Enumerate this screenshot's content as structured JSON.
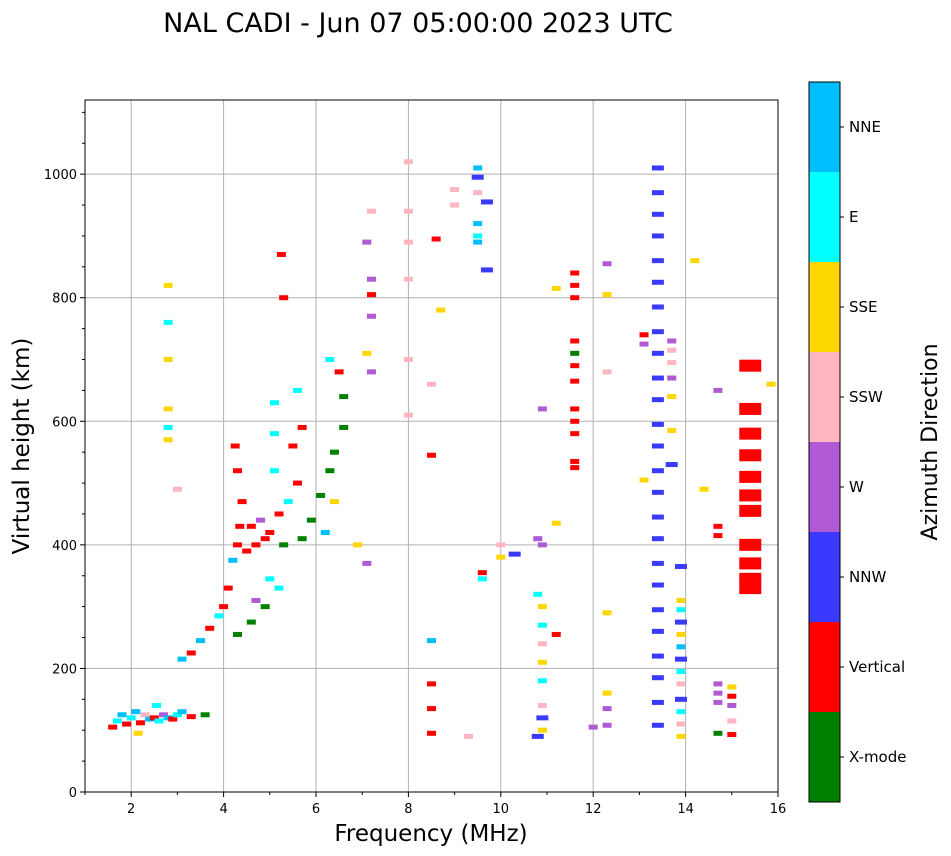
{
  "chart_data": {
    "type": "scatter",
    "title": "NAL CADI - Jun 07 05:00:00 2023 UTC",
    "xlabel": "Frequency (MHz)",
    "ylabel": "Virtual height (km)",
    "xlim": [
      1,
      16
    ],
    "ylim": [
      0,
      1120
    ],
    "xticks": [
      2,
      4,
      6,
      8,
      10,
      12,
      14,
      16
    ],
    "yticks": [
      0,
      200,
      400,
      600,
      800,
      1000
    ],
    "grid": true,
    "colorbar": {
      "title": "Azimuth Direction",
      "position": "right",
      "categories": [
        {
          "name": "X-mode",
          "color": "#008000"
        },
        {
          "name": "Vertical",
          "color": "#ff0000"
        },
        {
          "name": "NNW",
          "color": "#3a3aff"
        },
        {
          "name": "W",
          "color": "#b05ad6"
        },
        {
          "name": "SSW",
          "color": "#ffb6c1"
        },
        {
          "name": "SSE",
          "color": "#ffd700"
        },
        {
          "name": "E",
          "color": "#00ffff"
        },
        {
          "name": "NNE",
          "color": "#00bfff"
        }
      ]
    },
    "echoes": [
      {
        "x": 1.6,
        "y": 105,
        "c": 1
      },
      {
        "x": 1.7,
        "y": 115,
        "c": 6
      },
      {
        "x": 1.8,
        "y": 125,
        "c": 7
      },
      {
        "x": 1.9,
        "y": 110,
        "c": 1
      },
      {
        "x": 2.0,
        "y": 120,
        "c": 6
      },
      {
        "x": 2.1,
        "y": 130,
        "c": 7
      },
      {
        "x": 2.2,
        "y": 112,
        "c": 1
      },
      {
        "x": 2.3,
        "y": 125,
        "c": 4
      },
      {
        "x": 2.4,
        "y": 118,
        "c": 7
      },
      {
        "x": 2.5,
        "y": 120,
        "c": 1
      },
      {
        "x": 2.6,
        "y": 115,
        "c": 6
      },
      {
        "x": 2.7,
        "y": 125,
        "c": 3
      },
      {
        "x": 2.8,
        "y": 120,
        "c": 7
      },
      {
        "x": 2.9,
        "y": 118,
        "c": 1
      },
      {
        "x": 3.0,
        "y": 125,
        "c": 6
      },
      {
        "x": 3.1,
        "y": 130,
        "c": 7
      },
      {
        "x": 3.3,
        "y": 122,
        "c": 1
      },
      {
        "x": 3.6,
        "y": 125,
        "c": 0
      },
      {
        "x": 2.15,
        "y": 95,
        "c": 5
      },
      {
        "x": 2.55,
        "y": 140,
        "c": 6
      },
      {
        "x": 2.8,
        "y": 820,
        "c": 5
      },
      {
        "x": 2.8,
        "y": 760,
        "c": 6
      },
      {
        "x": 2.8,
        "y": 700,
        "c": 5
      },
      {
        "x": 2.8,
        "y": 620,
        "c": 5
      },
      {
        "x": 2.8,
        "y": 590,
        "c": 6
      },
      {
        "x": 2.8,
        "y": 570,
        "c": 5
      },
      {
        "x": 3.0,
        "y": 490,
        "c": 4
      },
      {
        "x": 3.1,
        "y": 215,
        "c": 7
      },
      {
        "x": 3.3,
        "y": 225,
        "c": 1
      },
      {
        "x": 3.5,
        "y": 245,
        "c": 7
      },
      {
        "x": 3.7,
        "y": 265,
        "c": 1
      },
      {
        "x": 3.9,
        "y": 285,
        "c": 6
      },
      {
        "x": 4.0,
        "y": 300,
        "c": 1
      },
      {
        "x": 4.1,
        "y": 330,
        "c": 1
      },
      {
        "x": 4.2,
        "y": 375,
        "c": 7
      },
      {
        "x": 4.3,
        "y": 400,
        "c": 1
      },
      {
        "x": 4.35,
        "y": 430,
        "c": 1
      },
      {
        "x": 4.4,
        "y": 470,
        "c": 1
      },
      {
        "x": 4.3,
        "y": 520,
        "c": 1
      },
      {
        "x": 4.25,
        "y": 560,
        "c": 1
      },
      {
        "x": 4.5,
        "y": 390,
        "c": 1
      },
      {
        "x": 4.7,
        "y": 400,
        "c": 1
      },
      {
        "x": 4.9,
        "y": 410,
        "c": 1
      },
      {
        "x": 4.6,
        "y": 430,
        "c": 1
      },
      {
        "x": 4.8,
        "y": 440,
        "c": 3
      },
      {
        "x": 5.0,
        "y": 420,
        "c": 1
      },
      {
        "x": 5.2,
        "y": 450,
        "c": 1
      },
      {
        "x": 5.4,
        "y": 470,
        "c": 6
      },
      {
        "x": 5.6,
        "y": 500,
        "c": 1
      },
      {
        "x": 5.1,
        "y": 520,
        "c": 6
      },
      {
        "x": 5.1,
        "y": 580,
        "c": 6
      },
      {
        "x": 5.1,
        "y": 630,
        "c": 6
      },
      {
        "x": 5.5,
        "y": 560,
        "c": 1
      },
      {
        "x": 5.7,
        "y": 590,
        "c": 1
      },
      {
        "x": 5.3,
        "y": 800,
        "c": 1
      },
      {
        "x": 5.25,
        "y": 870,
        "c": 1
      },
      {
        "x": 4.7,
        "y": 310,
        "c": 3
      },
      {
        "x": 5.0,
        "y": 345,
        "c": 6
      },
      {
        "x": 5.6,
        "y": 650,
        "c": 6
      },
      {
        "x": 4.3,
        "y": 255,
        "c": 0
      },
      {
        "x": 4.6,
        "y": 275,
        "c": 0
      },
      {
        "x": 4.9,
        "y": 300,
        "c": 0
      },
      {
        "x": 5.2,
        "y": 330,
        "c": 6
      },
      {
        "x": 5.3,
        "y": 400,
        "c": 0
      },
      {
        "x": 5.7,
        "y": 410,
        "c": 0
      },
      {
        "x": 5.9,
        "y": 440,
        "c": 0
      },
      {
        "x": 6.1,
        "y": 480,
        "c": 0
      },
      {
        "x": 6.3,
        "y": 520,
        "c": 0
      },
      {
        "x": 6.4,
        "y": 550,
        "c": 0
      },
      {
        "x": 6.6,
        "y": 590,
        "c": 0
      },
      {
        "x": 6.6,
        "y": 640,
        "c": 0
      },
      {
        "x": 6.5,
        "y": 680,
        "c": 1
      },
      {
        "x": 6.3,
        "y": 700,
        "c": 6
      },
      {
        "x": 6.4,
        "y": 470,
        "c": 5
      },
      {
        "x": 6.2,
        "y": 420,
        "c": 7
      },
      {
        "x": 6.9,
        "y": 400,
        "c": 5
      },
      {
        "x": 7.1,
        "y": 370,
        "c": 3
      },
      {
        "x": 7.2,
        "y": 940,
        "c": 4
      },
      {
        "x": 7.1,
        "y": 890,
        "c": 3
      },
      {
        "x": 7.2,
        "y": 830,
        "c": 3
      },
      {
        "x": 7.2,
        "y": 805,
        "c": 1
      },
      {
        "x": 7.2,
        "y": 770,
        "c": 3
      },
      {
        "x": 7.1,
        "y": 710,
        "c": 5
      },
      {
        "x": 7.2,
        "y": 680,
        "c": 3
      },
      {
        "x": 8.0,
        "y": 1020,
        "c": 4
      },
      {
        "x": 8.0,
        "y": 940,
        "c": 4
      },
      {
        "x": 8.0,
        "y": 890,
        "c": 4
      },
      {
        "x": 8.0,
        "y": 830,
        "c": 4
      },
      {
        "x": 8.0,
        "y": 700,
        "c": 4
      },
      {
        "x": 8.0,
        "y": 610,
        "c": 4
      },
      {
        "x": 8.6,
        "y": 895,
        "c": 1
      },
      {
        "x": 8.7,
        "y": 780,
        "c": 5
      },
      {
        "x": 8.5,
        "y": 660,
        "c": 4
      },
      {
        "x": 8.5,
        "y": 545,
        "c": 1
      },
      {
        "x": 8.5,
        "y": 245,
        "c": 7
      },
      {
        "x": 8.5,
        "y": 175,
        "c": 1
      },
      {
        "x": 8.5,
        "y": 135,
        "c": 1
      },
      {
        "x": 8.5,
        "y": 95,
        "c": 1
      },
      {
        "x": 9.0,
        "y": 975,
        "c": 4
      },
      {
        "x": 9.0,
        "y": 950,
        "c": 4
      },
      {
        "x": 9.3,
        "y": 90,
        "c": 4
      },
      {
        "x": 9.5,
        "y": 1010,
        "c": 7
      },
      {
        "x": 9.5,
        "y": 995,
        "c": 2
      },
      {
        "x": 9.5,
        "y": 970,
        "c": 4
      },
      {
        "x": 9.5,
        "y": 920,
        "c": 7
      },
      {
        "x": 9.5,
        "y": 900,
        "c": 6
      },
      {
        "x": 9.5,
        "y": 890,
        "c": 7
      },
      {
        "x": 9.7,
        "y": 955,
        "c": 2
      },
      {
        "x": 9.7,
        "y": 845,
        "c": 2
      },
      {
        "x": 9.6,
        "y": 355,
        "c": 1
      },
      {
        "x": 9.6,
        "y": 345,
        "c": 6
      },
      {
        "x": 10.0,
        "y": 400,
        "c": 4
      },
      {
        "x": 10.3,
        "y": 385,
        "c": 2
      },
      {
        "x": 10.0,
        "y": 380,
        "c": 5
      },
      {
        "x": 10.8,
        "y": 410,
        "c": 3
      },
      {
        "x": 10.9,
        "y": 400,
        "c": 3
      },
      {
        "x": 10.8,
        "y": 320,
        "c": 6
      },
      {
        "x": 10.9,
        "y": 300,
        "c": 5
      },
      {
        "x": 10.9,
        "y": 270,
        "c": 6
      },
      {
        "x": 10.9,
        "y": 240,
        "c": 4
      },
      {
        "x": 10.9,
        "y": 210,
        "c": 5
      },
      {
        "x": 10.9,
        "y": 180,
        "c": 6
      },
      {
        "x": 10.9,
        "y": 140,
        "c": 4
      },
      {
        "x": 10.9,
        "y": 120,
        "c": 2
      },
      {
        "x": 10.9,
        "y": 100,
        "c": 5
      },
      {
        "x": 10.8,
        "y": 90,
        "c": 2
      },
      {
        "x": 10.9,
        "y": 620,
        "c": 3
      },
      {
        "x": 11.2,
        "y": 435,
        "c": 5
      },
      {
        "x": 11.2,
        "y": 815,
        "c": 5
      },
      {
        "x": 11.2,
        "y": 255,
        "c": 1
      },
      {
        "x": 11.6,
        "y": 840,
        "c": 1
      },
      {
        "x": 11.6,
        "y": 820,
        "c": 1
      },
      {
        "x": 11.6,
        "y": 800,
        "c": 1
      },
      {
        "x": 11.6,
        "y": 730,
        "c": 1
      },
      {
        "x": 11.6,
        "y": 710,
        "c": 0
      },
      {
        "x": 11.6,
        "y": 690,
        "c": 1
      },
      {
        "x": 11.6,
        "y": 665,
        "c": 1
      },
      {
        "x": 11.6,
        "y": 620,
        "c": 1
      },
      {
        "x": 11.6,
        "y": 600,
        "c": 1
      },
      {
        "x": 11.6,
        "y": 580,
        "c": 1
      },
      {
        "x": 11.6,
        "y": 535,
        "c": 1
      },
      {
        "x": 11.6,
        "y": 525,
        "c": 1
      },
      {
        "x": 12.0,
        "y": 105,
        "c": 3
      },
      {
        "x": 12.3,
        "y": 855,
        "c": 3
      },
      {
        "x": 12.3,
        "y": 805,
        "c": 5
      },
      {
        "x": 12.3,
        "y": 680,
        "c": 4
      },
      {
        "x": 12.3,
        "y": 290,
        "c": 5
      },
      {
        "x": 12.3,
        "y": 160,
        "c": 5
      },
      {
        "x": 12.3,
        "y": 135,
        "c": 3
      },
      {
        "x": 12.3,
        "y": 108,
        "c": 3
      },
      {
        "x": 13.1,
        "y": 740,
        "c": 1
      },
      {
        "x": 13.1,
        "y": 725,
        "c": 3
      },
      {
        "x": 13.1,
        "y": 505,
        "c": 5
      },
      {
        "x": 13.4,
        "y": 1010,
        "c": 2
      },
      {
        "x": 13.4,
        "y": 970,
        "c": 2
      },
      {
        "x": 13.4,
        "y": 935,
        "c": 2
      },
      {
        "x": 13.4,
        "y": 900,
        "c": 2
      },
      {
        "x": 13.4,
        "y": 860,
        "c": 2
      },
      {
        "x": 13.4,
        "y": 825,
        "c": 2
      },
      {
        "x": 13.4,
        "y": 785,
        "c": 2
      },
      {
        "x": 13.4,
        "y": 745,
        "c": 2
      },
      {
        "x": 13.4,
        "y": 710,
        "c": 2
      },
      {
        "x": 13.4,
        "y": 670,
        "c": 2
      },
      {
        "x": 13.4,
        "y": 635,
        "c": 2
      },
      {
        "x": 13.4,
        "y": 595,
        "c": 2
      },
      {
        "x": 13.4,
        "y": 560,
        "c": 2
      },
      {
        "x": 13.4,
        "y": 520,
        "c": 2
      },
      {
        "x": 13.4,
        "y": 485,
        "c": 2
      },
      {
        "x": 13.4,
        "y": 445,
        "c": 2
      },
      {
        "x": 13.4,
        "y": 410,
        "c": 2
      },
      {
        "x": 13.4,
        "y": 370,
        "c": 2
      },
      {
        "x": 13.4,
        "y": 335,
        "c": 2
      },
      {
        "x": 13.4,
        "y": 295,
        "c": 2
      },
      {
        "x": 13.4,
        "y": 260,
        "c": 2
      },
      {
        "x": 13.4,
        "y": 220,
        "c": 2
      },
      {
        "x": 13.4,
        "y": 185,
        "c": 2
      },
      {
        "x": 13.4,
        "y": 145,
        "c": 2
      },
      {
        "x": 13.4,
        "y": 108,
        "c": 2
      },
      {
        "x": 13.7,
        "y": 730,
        "c": 3
      },
      {
        "x": 13.7,
        "y": 715,
        "c": 4
      },
      {
        "x": 13.7,
        "y": 695,
        "c": 4
      },
      {
        "x": 13.7,
        "y": 670,
        "c": 3
      },
      {
        "x": 13.7,
        "y": 640,
        "c": 5
      },
      {
        "x": 13.7,
        "y": 585,
        "c": 5
      },
      {
        "x": 13.7,
        "y": 530,
        "c": 2
      },
      {
        "x": 13.9,
        "y": 365,
        "c": 2
      },
      {
        "x": 13.9,
        "y": 310,
        "c": 5
      },
      {
        "x": 13.9,
        "y": 295,
        "c": 6
      },
      {
        "x": 13.9,
        "y": 275,
        "c": 2
      },
      {
        "x": 13.9,
        "y": 255,
        "c": 5
      },
      {
        "x": 13.9,
        "y": 235,
        "c": 7
      },
      {
        "x": 13.9,
        "y": 215,
        "c": 2
      },
      {
        "x": 13.9,
        "y": 195,
        "c": 6
      },
      {
        "x": 13.9,
        "y": 175,
        "c": 4
      },
      {
        "x": 13.9,
        "y": 150,
        "c": 2
      },
      {
        "x": 13.9,
        "y": 130,
        "c": 6
      },
      {
        "x": 13.9,
        "y": 110,
        "c": 4
      },
      {
        "x": 13.9,
        "y": 90,
        "c": 5
      },
      {
        "x": 14.2,
        "y": 860,
        "c": 5
      },
      {
        "x": 14.4,
        "y": 490,
        "c": 5
      },
      {
        "x": 14.7,
        "y": 650,
        "c": 3
      },
      {
        "x": 14.7,
        "y": 430,
        "c": 1
      },
      {
        "x": 14.7,
        "y": 415,
        "c": 1
      },
      {
        "x": 14.7,
        "y": 175,
        "c": 3
      },
      {
        "x": 14.7,
        "y": 160,
        "c": 3
      },
      {
        "x": 14.7,
        "y": 145,
        "c": 3
      },
      {
        "x": 14.7,
        "y": 95,
        "c": 0
      },
      {
        "x": 15.0,
        "y": 170,
        "c": 5
      },
      {
        "x": 15.0,
        "y": 155,
        "c": 1
      },
      {
        "x": 15.0,
        "y": 140,
        "c": 3
      },
      {
        "x": 15.0,
        "y": 115,
        "c": 4
      },
      {
        "x": 15.0,
        "y": 93,
        "c": 1
      },
      {
        "x": 15.4,
        "y": 690,
        "c": 1
      },
      {
        "x": 15.4,
        "y": 620,
        "c": 1
      },
      {
        "x": 15.4,
        "y": 580,
        "c": 1
      },
      {
        "x": 15.4,
        "y": 545,
        "c": 1
      },
      {
        "x": 15.4,
        "y": 510,
        "c": 1
      },
      {
        "x": 15.4,
        "y": 480,
        "c": 1
      },
      {
        "x": 15.4,
        "y": 455,
        "c": 1
      },
      {
        "x": 15.4,
        "y": 400,
        "c": 1
      },
      {
        "x": 15.4,
        "y": 370,
        "c": 1
      },
      {
        "x": 15.4,
        "y": 345,
        "c": 1
      },
      {
        "x": 15.4,
        "y": 330,
        "c": 1
      },
      {
        "x": 15.85,
        "y": 660,
        "c": 5
      }
    ]
  }
}
